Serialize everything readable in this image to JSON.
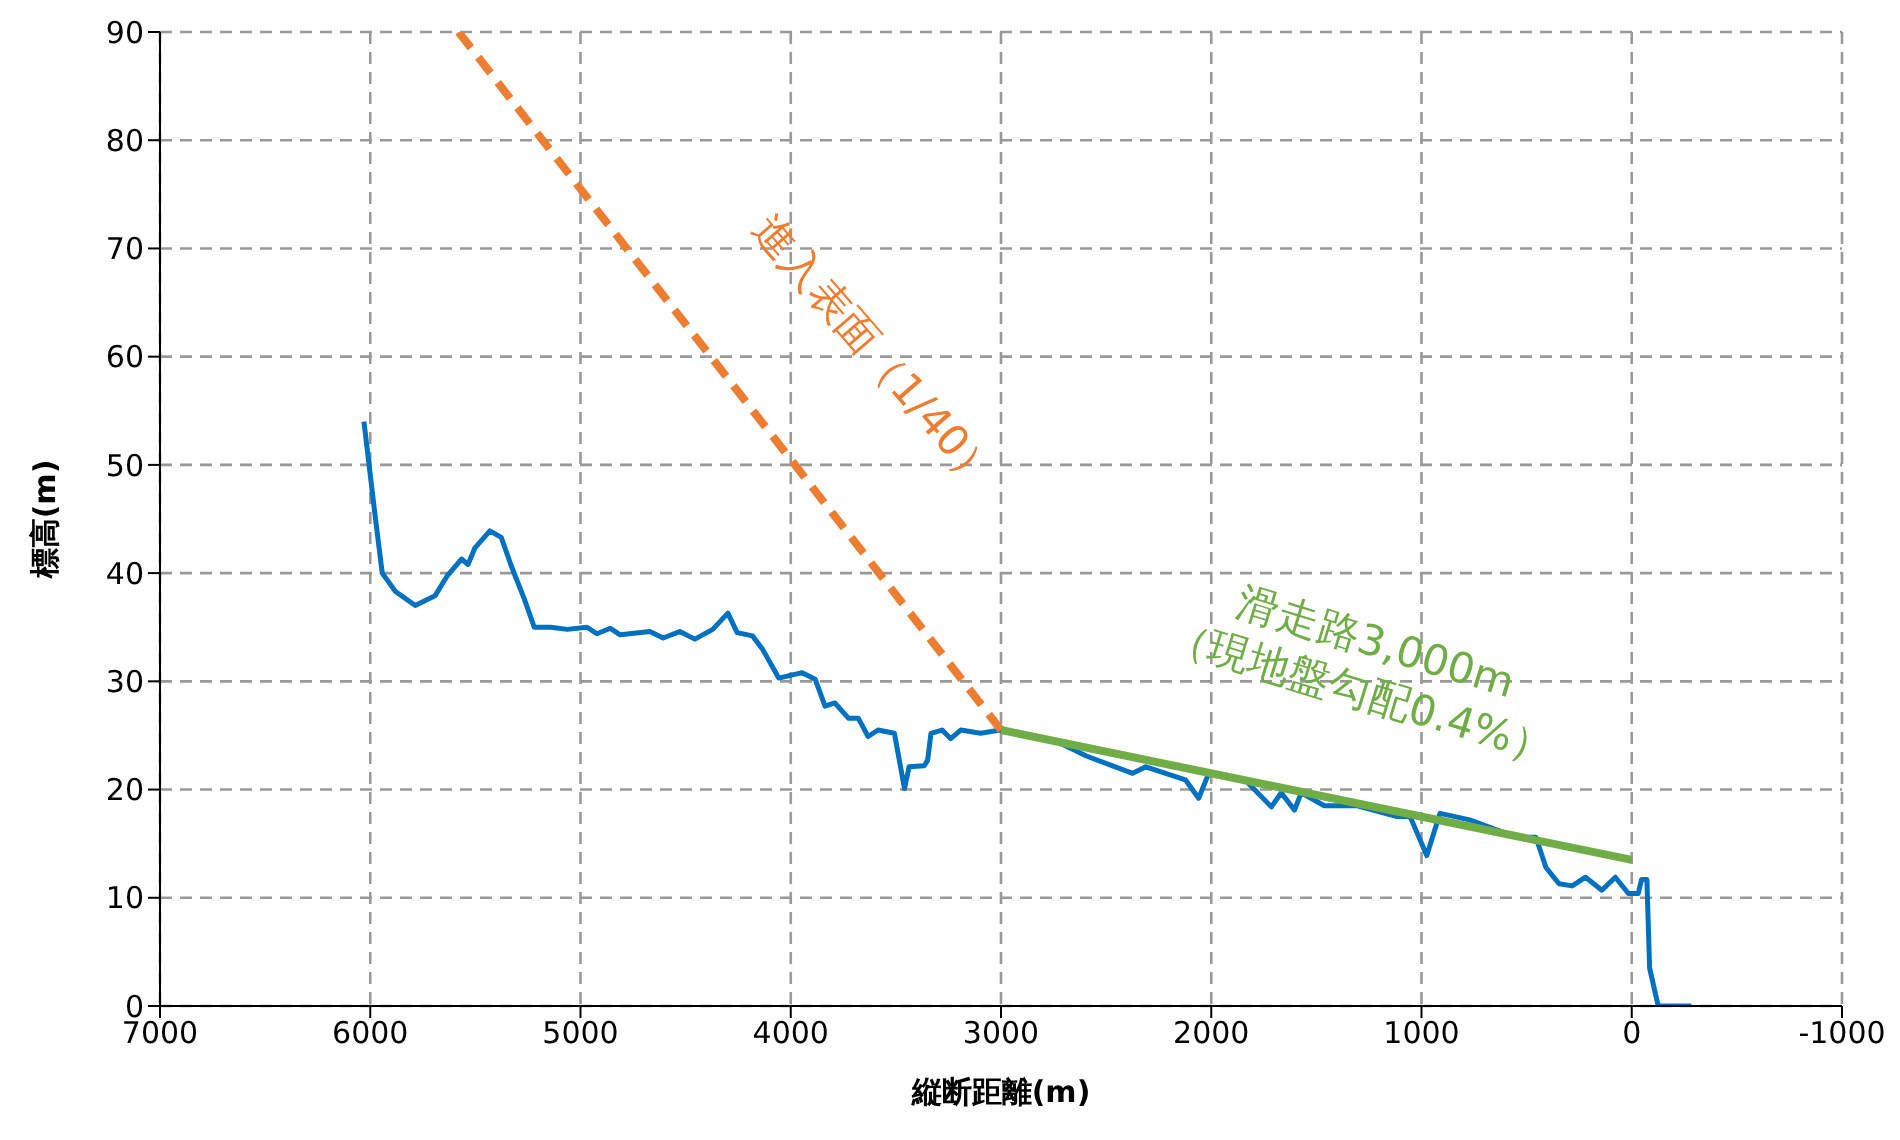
{
  "chart_data": {
    "type": "line",
    "xlabel": "縦断距離(m)",
    "ylabel": "標高(m)",
    "xlim": [
      7000,
      -1000
    ],
    "xticks": [
      7000,
      6000,
      5000,
      4000,
      3000,
      2000,
      1000,
      0,
      -1000
    ],
    "ylim": [
      0,
      90
    ],
    "yticks": [
      0,
      10,
      20,
      30,
      40,
      50,
      60,
      70,
      80,
      90
    ],
    "grid": true,
    "marker": "none",
    "series": [
      {
        "color": "#0070c0",
        "line_style": "solid",
        "x": [
          6030,
          5975,
          5943,
          5880,
          5786,
          5692,
          5632,
          5566,
          5535,
          5503,
          5431,
          5377,
          5330,
          5267,
          5220,
          5142,
          5063,
          4969,
          4922,
          4858,
          4811,
          4670,
          4607,
          4528,
          4456,
          4371,
          4299,
          4255,
          4182,
          4135,
          4057,
          3946,
          3884,
          3837,
          3790,
          3726,
          3679,
          3632,
          3585,
          3507,
          3459,
          3437,
          3365,
          3349,
          3333,
          3280,
          3239,
          3192,
          3097,
          3003,
          2720,
          2594,
          2374,
          2311,
          2123,
          2060,
          2012,
          1840,
          1714,
          1667,
          1604,
          1572,
          1462,
          1305,
          1116,
          1054,
          975,
          912,
          771,
          550,
          456,
          408,
          346,
          283,
          220,
          142,
          78,
          16,
          -31,
          -47,
          -72,
          -85,
          -126,
          -283
        ],
        "values": [
          54,
          45,
          40,
          38.3,
          37,
          37.9,
          39.8,
          41.3,
          40.8,
          42.3,
          43.9,
          43.3,
          40.7,
          37.6,
          35,
          35,
          34.8,
          35,
          34.4,
          34.9,
          34.3,
          34.6,
          34,
          34.6,
          33.9,
          34.8,
          36.3,
          34.5,
          34.2,
          33,
          30.3,
          30.8,
          30.2,
          27.7,
          28,
          26.6,
          26.6,
          24.9,
          25.5,
          25.2,
          20.1,
          22.1,
          22.2,
          22.7,
          25.2,
          25.5,
          24.7,
          25.5,
          25.2,
          25.5,
          24.3,
          23.1,
          21.5,
          22.1,
          20.9,
          19.2,
          21.5,
          20.9,
          18.4,
          19.7,
          18.1,
          19.7,
          18.5,
          18.5,
          17.5,
          17.5,
          13.9,
          17.8,
          17.2,
          15.6,
          15.6,
          12.8,
          11.3,
          11.1,
          11.9,
          10.7,
          11.9,
          10.4,
          10.4,
          11.7,
          11.7,
          3.5,
          0,
          0
        ]
      },
      {
        "color": "#ed7d31",
        "line_style": "dashed",
        "x": [
          3000,
          5580
        ],
        "values": [
          25.5,
          90
        ]
      },
      {
        "color": "#70ad47",
        "line_style": "solid",
        "x": [
          3000,
          0
        ],
        "values": [
          25.5,
          13.5
        ]
      }
    ],
    "annotations": [
      {
        "text": "進入表面（1/40）",
        "x": 3726,
        "y": 43.7
      },
      {
        "text": "滑走路3,000m\n（現地盤勾配0.4%）",
        "x": 1274,
        "y": 18.6
      }
    ]
  }
}
